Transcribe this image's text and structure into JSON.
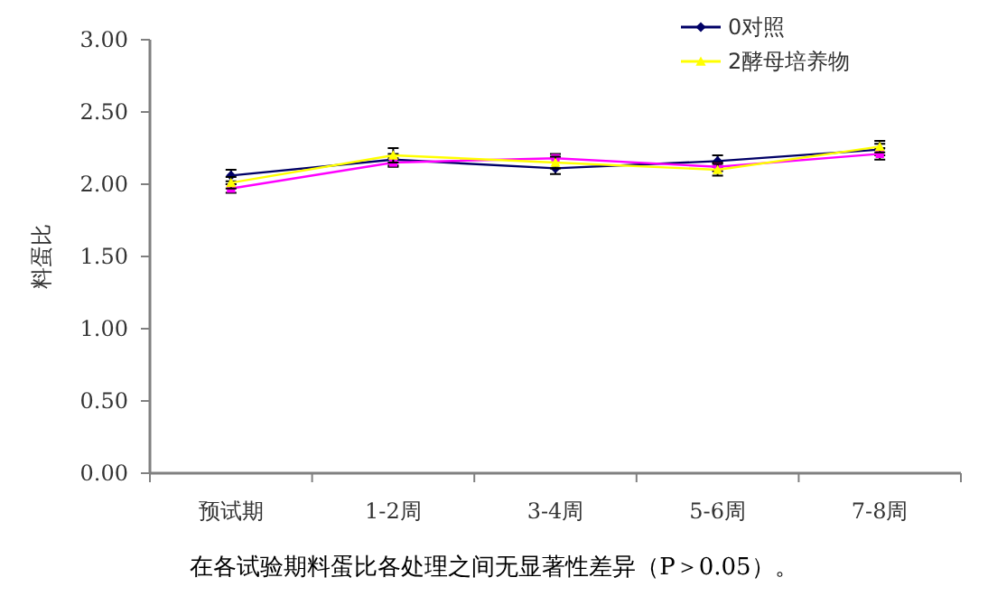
{
  "chart_data": {
    "type": "line",
    "ylabel": "料蛋比",
    "categories": [
      "预试期",
      "1-2周",
      "3-4周",
      "5-6周",
      "7-8周"
    ],
    "series": [
      {
        "name": "0对照",
        "color": "#000066",
        "marker": "diamond",
        "values": [
          2.06,
          2.17,
          2.11,
          2.16,
          2.24
        ],
        "errors": [
          0.04,
          0.04,
          0.04,
          0.04,
          0.04
        ]
      },
      {
        "color": "#ff00ff",
        "marker": "square",
        "values": [
          1.97,
          2.15,
          2.18,
          2.12,
          2.21
        ],
        "errors": [
          0.03,
          0.03,
          0.03,
          0.03,
          0.04
        ]
      },
      {
        "name": "2酵母培养物",
        "color": "#ffff00",
        "marker": "triangle",
        "values": [
          2.01,
          2.2,
          2.15,
          2.1,
          2.26
        ],
        "errors": [
          0.04,
          0.05,
          0.04,
          0.04,
          0.04
        ]
      }
    ],
    "ylim": [
      0,
      3
    ],
    "yticks": [
      {
        "value": 0,
        "label": "0.00"
      },
      {
        "value": 0.5,
        "label": "0.50"
      },
      {
        "value": 1,
        "label": "1.00"
      },
      {
        "value": 1.5,
        "label": "1.50"
      },
      {
        "value": 2,
        "label": "2.00"
      },
      {
        "value": 2.5,
        "label": "2.50"
      },
      {
        "value": 3,
        "label": "3.00"
      }
    ],
    "legend": "top right",
    "annotations": [
      "在各试验期料蛋比各处理之间无显著性差异（P＞0.05）。"
    ]
  }
}
